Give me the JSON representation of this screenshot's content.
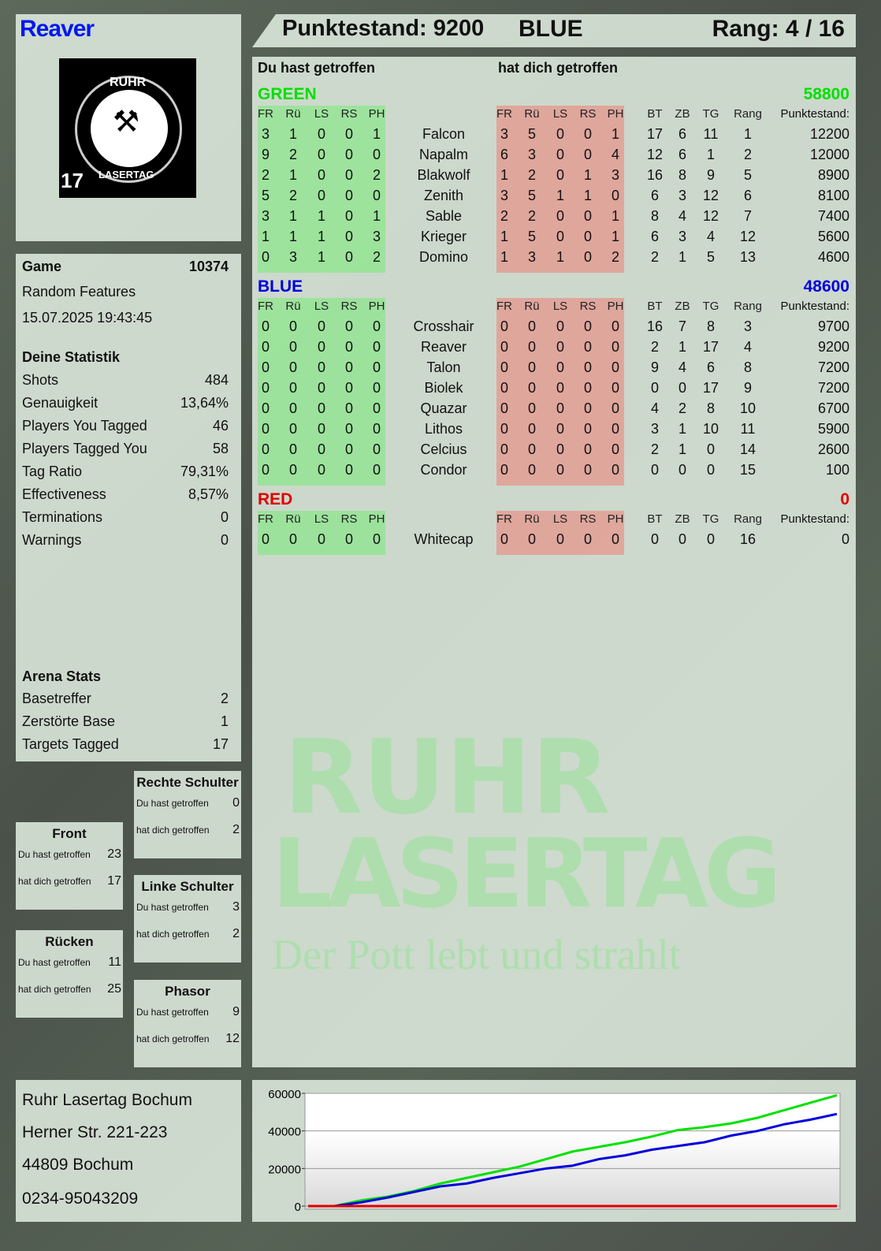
{
  "player": {
    "name": "Reaver",
    "vest_number": "17",
    "logo_text_top": "RUHR",
    "logo_text_bottom": "LASERTAG"
  },
  "header": {
    "score": "Punktestand: 9200",
    "team": "BLUE",
    "rank": "Rang: 4 / 16"
  },
  "colors": {
    "green": "#00e000",
    "blue": "#0000dd",
    "red": "#e00000",
    "player_name": "#0018f0"
  },
  "game": {
    "label": "Game",
    "id": "10374",
    "mode": "Random Features",
    "datetime": "15.07.2025 19:43:45"
  },
  "stats": {
    "title": "Deine Statistik",
    "rows": [
      {
        "label": "Shots",
        "value": "484"
      },
      {
        "label": "Genauigkeit",
        "value": "13,64%"
      },
      {
        "label": "Players You Tagged",
        "value": "46"
      },
      {
        "label": "Players Tagged You",
        "value": "58"
      },
      {
        "label": "Tag Ratio",
        "value": "79,31%"
      },
      {
        "label": "Effectiveness",
        "value": "8,57%"
      },
      {
        "label": "Terminations",
        "value": "0"
      },
      {
        "label": "Warnings",
        "value": "0"
      }
    ]
  },
  "arena": {
    "title": "Arena Stats",
    "rows": [
      {
        "label": "Basetreffer",
        "value": "2"
      },
      {
        "label": "Zerstörte Base",
        "value": "1"
      },
      {
        "label": "Targets Tagged",
        "value": "17"
      }
    ]
  },
  "zones": [
    {
      "title": "Rechte Schulter",
      "hit_label": "Du hast getroffen",
      "hit": "0",
      "got_label": "hat dich getroffen",
      "got": "2"
    },
    {
      "title": "Front",
      "hit_label": "Du hast getroffen",
      "hit": "23",
      "got_label": "hat dich getroffen",
      "got": "17"
    },
    {
      "title": "Linke Schulter",
      "hit_label": "Du hast getroffen",
      "hit": "3",
      "got_label": "hat dich getroffen",
      "got": "2"
    },
    {
      "title": "Rücken",
      "hit_label": "Du hast getroffen",
      "hit": "11",
      "got_label": "hat dich getroffen",
      "got": "25"
    },
    {
      "title": "Phasor",
      "hit_label": "Du hast getroffen",
      "hit": "9",
      "got_label": "hat dich getroffen",
      "got": "12"
    }
  ],
  "address": [
    "Ruhr Lasertag Bochum",
    "Herner Str. 221-223",
    "44809 Bochum",
    "0234-95043209"
  ],
  "table": {
    "you_hit_label": "Du hast getroffen",
    "hit_you_label": "hat dich getroffen",
    "hit_cols": [
      "FR",
      "Rü",
      "LS",
      "RS",
      "PH"
    ],
    "stat_cols": [
      "BT",
      "ZB",
      "TG",
      "Rang"
    ],
    "score_col": "Punktestand:",
    "teams": [
      {
        "name": "GREEN",
        "total": "58800",
        "color": "#00e000",
        "players": [
          {
            "name": "Falcon",
            "hit": [
              3,
              1,
              0,
              0,
              1
            ],
            "got": [
              3,
              5,
              0,
              0,
              1
            ],
            "stats": [
              17,
              6,
              11,
              1
            ],
            "score": "12200"
          },
          {
            "name": "Napalm",
            "hit": [
              9,
              2,
              0,
              0,
              0
            ],
            "got": [
              6,
              3,
              0,
              0,
              4
            ],
            "stats": [
              12,
              6,
              1,
              2
            ],
            "score": "12000"
          },
          {
            "name": "Blakwolf",
            "hit": [
              2,
              1,
              0,
              0,
              2
            ],
            "got": [
              1,
              2,
              0,
              1,
              3
            ],
            "stats": [
              16,
              8,
              9,
              5
            ],
            "score": "8900"
          },
          {
            "name": "Zenith",
            "hit": [
              5,
              2,
              0,
              0,
              0
            ],
            "got": [
              3,
              5,
              1,
              1,
              0
            ],
            "stats": [
              6,
              3,
              12,
              6
            ],
            "score": "8100"
          },
          {
            "name": "Sable",
            "hit": [
              3,
              1,
              1,
              0,
              1
            ],
            "got": [
              2,
              2,
              0,
              0,
              1
            ],
            "stats": [
              8,
              4,
              12,
              7
            ],
            "score": "7400"
          },
          {
            "name": "Krieger",
            "hit": [
              1,
              1,
              1,
              0,
              3
            ],
            "got": [
              1,
              5,
              0,
              0,
              1
            ],
            "stats": [
              6,
              3,
              4,
              12
            ],
            "score": "5600"
          },
          {
            "name": "Domino",
            "hit": [
              0,
              3,
              1,
              0,
              2
            ],
            "got": [
              1,
              3,
              1,
              0,
              2
            ],
            "stats": [
              2,
              1,
              5,
              13
            ],
            "score": "4600"
          }
        ]
      },
      {
        "name": "BLUE",
        "total": "48600",
        "color": "#0000dd",
        "players": [
          {
            "name": "Crosshair",
            "hit": [
              0,
              0,
              0,
              0,
              0
            ],
            "got": [
              0,
              0,
              0,
              0,
              0
            ],
            "stats": [
              16,
              7,
              8,
              3
            ],
            "score": "9700"
          },
          {
            "name": "Reaver",
            "hit": [
              0,
              0,
              0,
              0,
              0
            ],
            "got": [
              0,
              0,
              0,
              0,
              0
            ],
            "stats": [
              2,
              1,
              17,
              4
            ],
            "score": "9200"
          },
          {
            "name": "Talon",
            "hit": [
              0,
              0,
              0,
              0,
              0
            ],
            "got": [
              0,
              0,
              0,
              0,
              0
            ],
            "stats": [
              9,
              4,
              6,
              8
            ],
            "score": "7200"
          },
          {
            "name": "Biolek",
            "hit": [
              0,
              0,
              0,
              0,
              0
            ],
            "got": [
              0,
              0,
              0,
              0,
              0
            ],
            "stats": [
              0,
              0,
              17,
              9
            ],
            "score": "7200"
          },
          {
            "name": "Quazar",
            "hit": [
              0,
              0,
              0,
              0,
              0
            ],
            "got": [
              0,
              0,
              0,
              0,
              0
            ],
            "stats": [
              4,
              2,
              8,
              10
            ],
            "score": "6700"
          },
          {
            "name": "Lithos",
            "hit": [
              0,
              0,
              0,
              0,
              0
            ],
            "got": [
              0,
              0,
              0,
              0,
              0
            ],
            "stats": [
              3,
              1,
              10,
              11
            ],
            "score": "5900"
          },
          {
            "name": "Celcius",
            "hit": [
              0,
              0,
              0,
              0,
              0
            ],
            "got": [
              0,
              0,
              0,
              0,
              0
            ],
            "stats": [
              2,
              1,
              0,
              14
            ],
            "score": "2600"
          },
          {
            "name": "Condor",
            "hit": [
              0,
              0,
              0,
              0,
              0
            ],
            "got": [
              0,
              0,
              0,
              0,
              0
            ],
            "stats": [
              0,
              0,
              0,
              15
            ],
            "score": "100"
          }
        ]
      },
      {
        "name": "RED",
        "total": "0",
        "color": "#e00000",
        "players": [
          {
            "name": "Whitecap",
            "hit": [
              0,
              0,
              0,
              0,
              0
            ],
            "got": [
              0,
              0,
              0,
              0,
              0
            ],
            "stats": [
              0,
              0,
              0,
              16
            ],
            "score": "0"
          }
        ]
      }
    ]
  },
  "watermark": {
    "line1": "RUHR",
    "line2": "LASERTAG",
    "slogan": "Der Pott lebt und strahlt"
  },
  "chart_data": {
    "type": "line",
    "ylim": [
      0,
      60000
    ],
    "yticks": [
      "0",
      "20000",
      "40000",
      "60000"
    ],
    "grid": true,
    "x": [
      0,
      1,
      2,
      3,
      4,
      5,
      6,
      7,
      8,
      9,
      10,
      11,
      12,
      13,
      14,
      15,
      16,
      17,
      18,
      19,
      20
    ],
    "series": [
      {
        "color": "#00e000",
        "values": [
          0,
          0,
          3000,
          5000,
          8000,
          12000,
          15000,
          18000,
          21000,
          25000,
          29000,
          31500,
          34000,
          37000,
          40500,
          42000,
          44000,
          47000,
          51000,
          55000,
          59000
        ]
      },
      {
        "color": "#0000dd",
        "values": [
          0,
          0,
          2000,
          4500,
          7500,
          10500,
          12000,
          15000,
          17500,
          20000,
          21500,
          25000,
          27000,
          30000,
          32000,
          34000,
          37500,
          40000,
          43500,
          46000,
          49000
        ]
      },
      {
        "color": "#e00000",
        "values": [
          0,
          0,
          0,
          0,
          0,
          0,
          0,
          0,
          0,
          0,
          0,
          0,
          0,
          0,
          0,
          0,
          0,
          0,
          0,
          0,
          0
        ]
      }
    ]
  }
}
